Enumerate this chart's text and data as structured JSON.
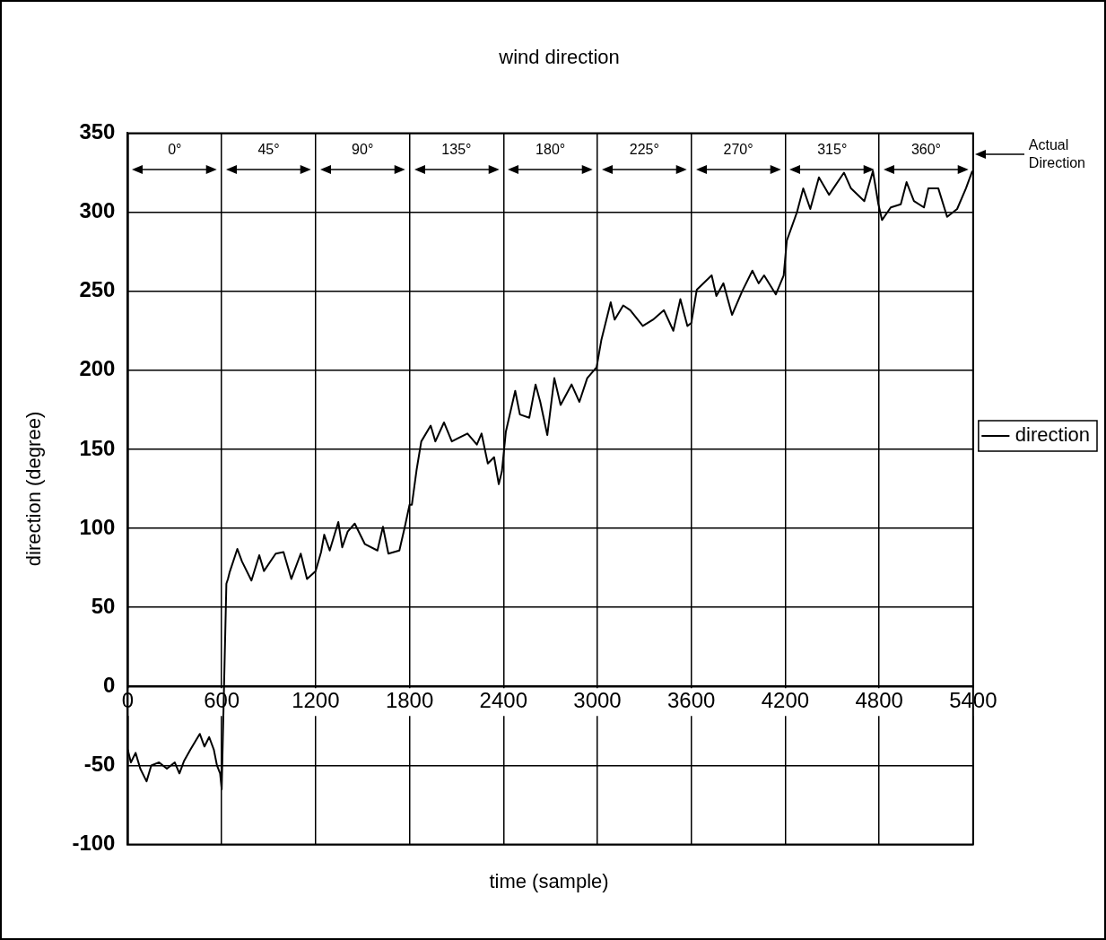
{
  "chart_data": {
    "type": "line",
    "title": "wind direction",
    "xlabel": "time (sample)",
    "ylabel": "direction (degree)",
    "xlim": [
      0,
      5400
    ],
    "xticks": [
      0,
      600,
      1200,
      1800,
      2400,
      3000,
      3600,
      4200,
      4800,
      5400
    ],
    "ylim": [
      -100,
      350
    ],
    "yticks": [
      -100,
      -50,
      0,
      50,
      100,
      150,
      200,
      250,
      300,
      350
    ],
    "grid": true,
    "legend": "right",
    "annotations": [
      "0°",
      "45°",
      "90°",
      "135°",
      "180°",
      "225°",
      "270°",
      "315°",
      "360°",
      "Actual Direction"
    ],
    "series": [
      {
        "name": "direction",
        "color": "#000000",
        "x": [
          0,
          20,
          50,
          80,
          120,
          150,
          200,
          250,
          300,
          330,
          360,
          400,
          430,
          460,
          490,
          520,
          550,
          570,
          590,
          600,
          615,
          630,
          640,
          650,
          700,
          730,
          790,
          840,
          870,
          945,
          995,
          1045,
          1105,
          1145,
          1200,
          1235,
          1255,
          1290,
          1345,
          1370,
          1405,
          1450,
          1515,
          1595,
          1630,
          1665,
          1735,
          1770,
          1800,
          1815,
          1845,
          1875,
          1935,
          1965,
          2020,
          2070,
          2170,
          2230,
          2260,
          2300,
          2340,
          2370,
          2390,
          2415,
          2475,
          2505,
          2565,
          2605,
          2635,
          2680,
          2725,
          2765,
          2835,
          2885,
          2935,
          2995,
          3025,
          3085,
          3110,
          3165,
          3210,
          3290,
          3355,
          3425,
          3485,
          3530,
          3575,
          3600,
          3635,
          3730,
          3760,
          3805,
          3860,
          3925,
          3990,
          4030,
          4065,
          4140,
          4190,
          4210,
          4275,
          4315,
          4360,
          4415,
          4480,
          4575,
          4620,
          4705,
          4760,
          4795,
          4818,
          4874,
          4938,
          4975,
          5022,
          5086,
          5114,
          5178,
          5234,
          5298,
          5354,
          5395
        ],
        "values": [
          -40,
          -48,
          -42,
          -52,
          -60,
          -50,
          -48,
          -52,
          -48,
          -55,
          -47,
          -40,
          -35,
          -30,
          -38,
          -32,
          -40,
          -50,
          -55,
          -65,
          0,
          65,
          68,
          72,
          87,
          79,
          67,
          83,
          73,
          84,
          85,
          68,
          84,
          68,
          73,
          85,
          96,
          86,
          104,
          88,
          98,
          103,
          90,
          86,
          101,
          84,
          86,
          101,
          115,
          115,
          137,
          155,
          165,
          155,
          167,
          155,
          160,
          153,
          160,
          141,
          145,
          128,
          136,
          161,
          187,
          172,
          170,
          191,
          180,
          159,
          195,
          178,
          191,
          180,
          195,
          202,
          219,
          243,
          232,
          241,
          238,
          228,
          232,
          238,
          225,
          245,
          228,
          230,
          251,
          260,
          247,
          255,
          235,
          250,
          263,
          255,
          260,
          248,
          260,
          282,
          300,
          315,
          302,
          322,
          311,
          325,
          315,
          307,
          326,
          305,
          295,
          303,
          305,
          319,
          307,
          303,
          315,
          315,
          297,
          302,
          315,
          326
        ]
      }
    ]
  }
}
